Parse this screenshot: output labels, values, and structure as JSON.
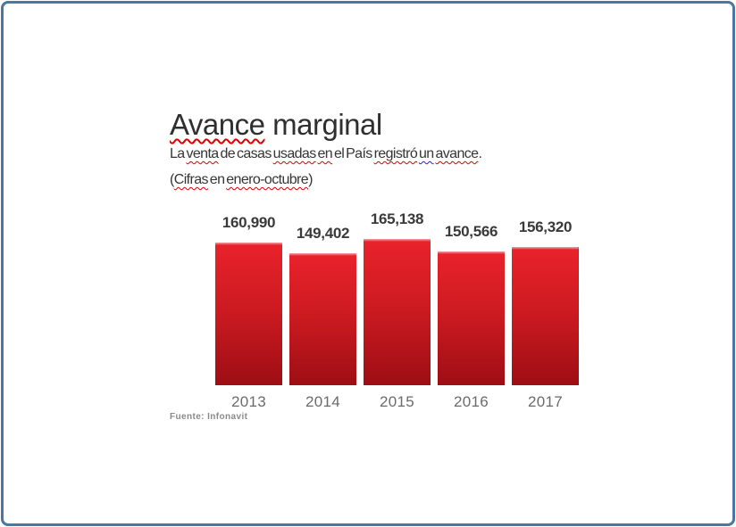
{
  "page": {
    "border_color": "#4a78a2",
    "background_color": "#ffffff"
  },
  "header": {
    "title": {
      "w1": "Avance",
      "w2": "marginal"
    },
    "subtitle": {
      "w1": "La",
      "w2": "venta",
      "w3": "de",
      "w4": "casas",
      "w5": "usadas",
      "w6": "en",
      "w7": "el",
      "w8": "País",
      "w9": "registró",
      "w10": "un",
      "w11": "avance",
      "period": "."
    },
    "note": {
      "open": "(",
      "w1": "Cifras",
      "w2": "en",
      "w3": "enero-octubre",
      "close": ")"
    }
  },
  "source": {
    "text": "Fuente: Infonavit"
  },
  "chart_data": {
    "type": "bar",
    "title": "Avance marginal",
    "subtitle": "La venta de casas usadas en el País registró un avance.",
    "note": "(Cifras en enero-octubre)",
    "source": "Fuente: Infonavit",
    "categories": [
      "2013",
      "2014",
      "2015",
      "2016",
      "2017"
    ],
    "values": [
      160990,
      149402,
      165138,
      150566,
      156320
    ],
    "labels": [
      "160,990",
      "149,402",
      "165,138",
      "150,566",
      "156,320"
    ],
    "xlabel": "",
    "ylabel": "",
    "ylim": [
      0,
      165138
    ],
    "grid": false,
    "legend": false,
    "bar_highlight": "#f2a4a8",
    "bar_color_top": "#e8222b",
    "bar_color_mid": "#cc1a21",
    "bar_color_bottom": "#9d0e14",
    "value_label_color": "#3a3a3a",
    "category_label_color": "#6b6b6b"
  }
}
